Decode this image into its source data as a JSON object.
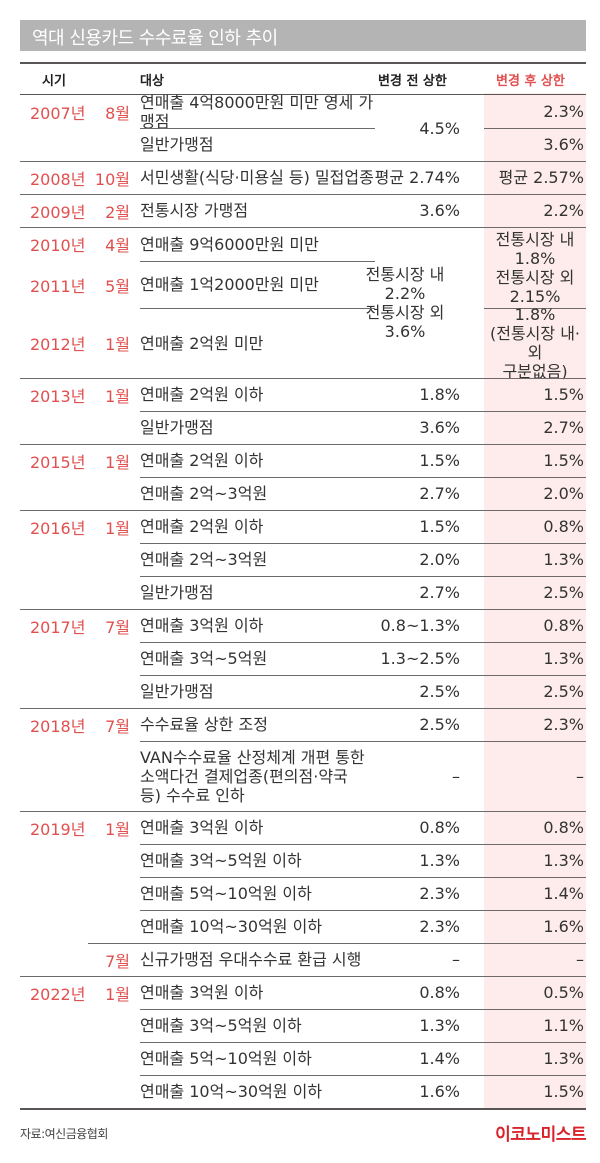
{
  "title": "역대 신용카드 수수료율 인하 추이",
  "header": {
    "period": "시기",
    "target": "대상",
    "before": "변경 전 상한",
    "after": "변경 후 상한"
  },
  "rows": [
    {
      "year": "2007년",
      "month": "8월",
      "target": "연매출 4억8000만원 미만 영세 가맹점",
      "before": "4.5%",
      "after": "2.3%"
    },
    {
      "year": "",
      "month": "",
      "target": "일반가맹점",
      "before": "",
      "after": "3.6%"
    },
    {
      "year": "2008년",
      "month": "10월",
      "target": "서민생활(식당·미용실 등) 밀접업종",
      "before": "평균 2.74%",
      "after": "평균 2.57%"
    },
    {
      "year": "2009년",
      "month": "2월",
      "target": "전통시장 가맹점",
      "before": "3.6%",
      "after": "2.2%"
    },
    {
      "year": "2010년",
      "month": "4월",
      "target": "연매출 9억6000만원 미만",
      "before": "전통시장 내 2.2% 전통시장 외 3.6%",
      "after": "전통시장 내 1.8% 전통시장 외 2.15%"
    },
    {
      "year": "2011년",
      "month": "5월",
      "target": "연매출 1억2000만원 미만",
      "before": "",
      "after": ""
    },
    {
      "year": "2012년",
      "month": "1월",
      "target": "연매출 2억원 미만",
      "before": "",
      "after": "1.8% (전통시장 내·외 구분없음)"
    },
    {
      "year": "2013년",
      "month": "1월",
      "target": "연매출 2억원 이하",
      "before": "1.8%",
      "after": "1.5%"
    },
    {
      "year": "",
      "month": "",
      "target": "일반가맹점",
      "before": "3.6%",
      "after": "2.7%"
    },
    {
      "year": "2015년",
      "month": "1월",
      "target": "연매출 2억원 이하",
      "before": "1.5%",
      "after": "1.5%"
    },
    {
      "year": "",
      "month": "",
      "target": "연매출 2억~3억원",
      "before": "2.7%",
      "after": "2.0%"
    },
    {
      "year": "2016년",
      "month": "1월",
      "target": "연매출 2억원 이하",
      "before": "1.5%",
      "after": "0.8%"
    },
    {
      "year": "",
      "month": "",
      "target": "연매출 2억~3억원",
      "before": "2.0%",
      "after": "1.3%"
    },
    {
      "year": "",
      "month": "",
      "target": "일반가맹점",
      "before": "2.7%",
      "after": "2.5%"
    },
    {
      "year": "2017년",
      "month": "7월",
      "target": "연매출 3억원 이하",
      "before": "0.8~1.3%",
      "after": "0.8%"
    },
    {
      "year": "",
      "month": "",
      "target": "연매출 3억~5억원",
      "before": "1.3~2.5%",
      "after": "1.3%"
    },
    {
      "year": "",
      "month": "",
      "target": "일반가맹점",
      "before": "2.5%",
      "after": "2.5%"
    },
    {
      "year": "2018년",
      "month": "7월",
      "target": "수수료율 상한 조정",
      "before": "2.5%",
      "after": "2.3%"
    },
    {
      "year": "",
      "month": "",
      "target": "VAN수수료율 산정체계 개편 통한 소액다건 결제업종(편의점·약국 등) 수수료 인하",
      "before": "–",
      "after": "–"
    },
    {
      "year": "2019년",
      "month": "1월",
      "target": "연매출 3억원 이하",
      "before": "0.8%",
      "after": "0.8%"
    },
    {
      "year": "",
      "month": "",
      "target": "연매출 3억~5억원 이하",
      "before": "1.3%",
      "after": "1.3%"
    },
    {
      "year": "",
      "month": "",
      "target": "연매출 5억~10억원 이하",
      "before": "2.3%",
      "after": "1.4%"
    },
    {
      "year": "",
      "month": "",
      "target": "연매출 10억~30억원 이하",
      "before": "2.3%",
      "after": "1.6%"
    },
    {
      "year": "",
      "month": "7월",
      "target": "신규가맹점 우대수수료 환급 시행",
      "before": "–",
      "after": "–"
    },
    {
      "year": "2022년",
      "month": "1월",
      "target": "연매출 3억원 이하",
      "before": "0.8%",
      "after": "0.5%"
    },
    {
      "year": "",
      "month": "",
      "target": "연매출 3억~5억원 이하",
      "before": "1.3%",
      "after": "1.1%"
    },
    {
      "year": "",
      "month": "",
      "target": "연매출 5억~10억원 이하",
      "before": "1.4%",
      "after": "1.3%"
    },
    {
      "year": "",
      "month": "",
      "target": "연매출 10억~30억원 이하",
      "before": "1.6%",
      "after": "1.5%"
    }
  ],
  "footer": {
    "source": "자료:여신금융협회",
    "logo": "이코노미스트"
  },
  "colors": {
    "accent": "#e0504f",
    "after_bg": "#fdeceb",
    "title_bg": "#b4b4b4",
    "logo": "#d8232a"
  }
}
